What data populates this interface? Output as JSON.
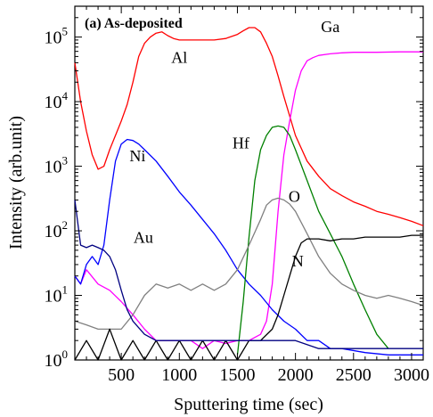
{
  "chart_data": {
    "type": "line",
    "title": "(a) As-deposited",
    "xlabel": "Sputtering time (sec)",
    "ylabel": "Intensity (arb.unit)",
    "xlim": [
      100,
      3100
    ],
    "ylim": [
      1,
      300000
    ],
    "yscale": "log",
    "x_ticks": [
      500,
      1000,
      1500,
      2000,
      2500,
      3000
    ],
    "y_ticks": [
      {
        "base": "10",
        "exp": "0",
        "value": 1
      },
      {
        "base": "10",
        "exp": "1",
        "value": 10
      },
      {
        "base": "10",
        "exp": "2",
        "value": 100
      },
      {
        "base": "10",
        "exp": "3",
        "value": 1000
      },
      {
        "base": "10",
        "exp": "4",
        "value": 10000
      },
      {
        "base": "10",
        "exp": "5",
        "value": 100000
      }
    ],
    "grid": false,
    "legend": "none",
    "series": [
      {
        "name": "Al",
        "color": "#ff0000",
        "x": [
          100,
          150,
          200,
          250,
          300,
          350,
          400,
          450,
          500,
          550,
          600,
          650,
          700,
          750,
          800,
          850,
          900,
          950,
          1000,
          1100,
          1200,
          1300,
          1400,
          1500,
          1550,
          1600,
          1650,
          1700,
          1750,
          1800,
          1850,
          1900,
          1950,
          2000,
          2100,
          2200,
          2300,
          2400,
          2500,
          2600,
          2700,
          2800,
          2900,
          3000,
          3100
        ],
        "y": [
          40000,
          10000,
          3500,
          1500,
          900,
          1000,
          1800,
          3000,
          5000,
          9000,
          20000,
          50000,
          80000,
          100000,
          115000,
          120000,
          105000,
          95000,
          90000,
          90000,
          90000,
          90000,
          95000,
          110000,
          125000,
          140000,
          140000,
          120000,
          80000,
          50000,
          25000,
          12000,
          6000,
          3000,
          1200,
          700,
          450,
          350,
          280,
          240,
          200,
          180,
          160,
          140,
          120
        ]
      },
      {
        "name": "Ga",
        "color": "#ff00ff",
        "x": [
          100,
          150,
          200,
          300,
          400,
          500,
          600,
          700,
          800,
          900,
          1000,
          1100,
          1200,
          1300,
          1400,
          1500,
          1600,
          1700,
          1750,
          1800,
          1850,
          1900,
          1950,
          2000,
          2050,
          2100,
          2150,
          2200,
          2300,
          2400,
          2500,
          2700,
          2900,
          3100
        ],
        "y": [
          20,
          15,
          25,
          15,
          12,
          8,
          5,
          3,
          2,
          2,
          2,
          2,
          1.5,
          2,
          1.8,
          2,
          2,
          2.5,
          4,
          15,
          200,
          1500,
          5000,
          15000,
          30000,
          43000,
          48000,
          52000,
          55000,
          57000,
          58000,
          58000,
          59000,
          59000
        ]
      },
      {
        "name": "Ni",
        "color": "#0000ff",
        "x": [
          100,
          150,
          200,
          250,
          300,
          350,
          400,
          450,
          500,
          550,
          600,
          650,
          700,
          800,
          900,
          1000,
          1100,
          1200,
          1300,
          1400,
          1500,
          1600,
          1700,
          1800,
          1900,
          2000,
          2100,
          2200,
          2300,
          2400,
          2600,
          2800,
          3000,
          3100
        ],
        "y": [
          20,
          15,
          30,
          40,
          30,
          60,
          300,
          1200,
          2200,
          2600,
          2500,
          2200,
          1800,
          1200,
          700,
          400,
          250,
          150,
          90,
          50,
          25,
          15,
          10,
          6,
          4,
          3,
          2,
          2,
          1.5,
          1.5,
          1.3,
          1.2,
          1.2,
          1.2
        ]
      },
      {
        "name": "Hf",
        "color": "#008000",
        "x": [
          1500,
          1550,
          1600,
          1650,
          1700,
          1750,
          1800,
          1850,
          1900,
          1950,
          2000,
          2100,
          2200,
          2300,
          2400,
          2500,
          2600,
          2700,
          2800
        ],
        "y": [
          1.2,
          8,
          80,
          600,
          1800,
          3000,
          4000,
          4200,
          4000,
          3000,
          1800,
          600,
          200,
          90,
          40,
          15,
          6,
          2.5,
          1.5
        ]
      },
      {
        "name": "O",
        "color": "#808080",
        "x": [
          100,
          200,
          300,
          400,
          500,
          600,
          700,
          800,
          900,
          1000,
          1100,
          1200,
          1300,
          1400,
          1500,
          1600,
          1700,
          1750,
          1800,
          1850,
          1900,
          1950,
          2000,
          2100,
          2200,
          2300,
          2400,
          2500,
          2600,
          2700,
          2800,
          2900,
          3000,
          3100
        ],
        "y": [
          4,
          3.5,
          3,
          3,
          3,
          5,
          10,
          15,
          13,
          15,
          12,
          15,
          12,
          15,
          25,
          60,
          150,
          250,
          300,
          320,
          300,
          260,
          200,
          90,
          40,
          22,
          15,
          12,
          10,
          9,
          10,
          9,
          8,
          7
        ]
      },
      {
        "name": "N",
        "color": "#000000",
        "x": [
          100,
          200,
          300,
          400,
          500,
          600,
          700,
          800,
          900,
          1000,
          1100,
          1200,
          1300,
          1400,
          1500,
          1600,
          1700,
          1800,
          1850,
          1900,
          1950,
          2000,
          2050,
          2100,
          2200,
          2300,
          2400,
          2500,
          2600,
          2700,
          2800,
          2900,
          3000,
          3100
        ],
        "y": [
          1,
          2,
          1,
          3,
          1,
          2,
          1,
          2,
          1,
          2,
          1,
          2,
          1,
          2,
          1,
          2,
          2,
          3,
          5,
          10,
          20,
          40,
          65,
          75,
          75,
          70,
          75,
          75,
          80,
          80,
          80,
          80,
          85,
          85
        ]
      },
      {
        "name": "Au",
        "color": "#000080",
        "x": [
          100,
          150,
          200,
          250,
          300,
          350,
          400,
          450,
          500,
          550,
          600,
          700,
          800,
          900,
          1000,
          1200,
          1400,
          1600,
          1800,
          2000,
          2200,
          2400,
          2600,
          2800,
          3000,
          3100
        ],
        "y": [
          300,
          60,
          55,
          60,
          55,
          50,
          40,
          25,
          12,
          6,
          4,
          2.5,
          2,
          2,
          2,
          2,
          2,
          2,
          2,
          2,
          1.5,
          1.5,
          1.5,
          1.5,
          1.5,
          1.5
        ]
      }
    ],
    "annotations": [
      {
        "text": "Al",
        "series": "Al",
        "x": 1000,
        "y": 40000
      },
      {
        "text": "Ga",
        "series": "Ga",
        "x": 2300,
        "y": 120000
      },
      {
        "text": "Ni",
        "series": "Ni",
        "x": 640,
        "y": 1200
      },
      {
        "text": "Hf",
        "series": "Hf",
        "x": 1530,
        "y": 1900
      },
      {
        "text": "O",
        "series": "O",
        "x": 1990,
        "y": 280
      },
      {
        "text": "N",
        "series": "N",
        "x": 2020,
        "y": 28
      },
      {
        "text": "Au",
        "series": "Au",
        "x": 690,
        "y": 65
      }
    ]
  }
}
